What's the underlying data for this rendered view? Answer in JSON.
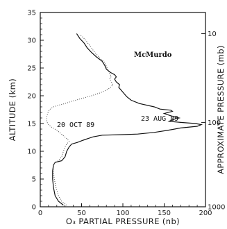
{
  "chart_data": {
    "type": "line",
    "xlabel": "O₃ PARTIAL PRESSURE (nb)",
    "ylabel": "ALTITUDE (km)",
    "y2label": "APPROXIMATE PRESSURE (mb)",
    "xlim": [
      0,
      200
    ],
    "ylim": [
      0,
      35
    ],
    "x_ticks": [
      "0",
      "50",
      "100",
      "150",
      "200"
    ],
    "y_ticks": [
      "0",
      "5",
      "10",
      "15",
      "20",
      "25",
      "30",
      "35"
    ],
    "y2_ticks": [
      {
        "label": "10",
        "altitude": 31.2
      },
      {
        "label": "100",
        "altitude": 15.2
      },
      {
        "label": "1000",
        "altitude": 0
      }
    ],
    "annotation": "McMurdo",
    "series": [
      {
        "name": "23 AUG 89",
        "style": "solid",
        "points": [
          [
            28,
            0.3
          ],
          [
            22,
            1.0
          ],
          [
            18,
            2.0
          ],
          [
            16,
            3.5
          ],
          [
            15,
            5
          ],
          [
            15,
            6.5
          ],
          [
            16,
            7.5
          ],
          [
            18,
            8.0
          ],
          [
            26,
            8.3
          ],
          [
            30,
            9
          ],
          [
            32,
            10
          ],
          [
            35,
            10.8
          ],
          [
            38,
            11.3
          ],
          [
            45,
            11.6
          ],
          [
            52,
            12
          ],
          [
            58,
            12.3
          ],
          [
            64,
            12.6
          ],
          [
            75,
            12.9
          ],
          [
            100,
            13.0
          ],
          [
            118,
            13.1
          ],
          [
            138,
            13.4
          ],
          [
            155,
            13.8
          ],
          [
            170,
            14.2
          ],
          [
            190,
            14.5
          ],
          [
            195,
            14.8
          ],
          [
            188,
            15.0
          ],
          [
            170,
            15.2
          ],
          [
            156,
            15.4
          ],
          [
            160,
            15.7
          ],
          [
            168,
            16.0
          ],
          [
            158,
            16.4
          ],
          [
            150,
            16.8
          ],
          [
            160,
            17.2
          ],
          [
            158,
            17.4
          ],
          [
            145,
            17.6
          ],
          [
            138,
            18.0
          ],
          [
            120,
            18.6
          ],
          [
            110,
            19.2
          ],
          [
            105,
            19.8
          ],
          [
            102,
            20.3
          ],
          [
            98,
            21.0
          ],
          [
            95,
            21.5
          ],
          [
            96,
            22.0
          ],
          [
            92,
            22.5
          ],
          [
            90,
            23.0
          ],
          [
            92,
            23.4
          ],
          [
            90,
            23.8
          ],
          [
            85,
            24.2
          ],
          [
            80,
            24.8
          ],
          [
            78,
            25.5
          ],
          [
            75,
            26.2
          ],
          [
            68,
            27.0
          ],
          [
            62,
            27.8
          ],
          [
            57,
            28.6
          ],
          [
            53,
            29.5
          ],
          [
            48,
            30.3
          ],
          [
            44,
            31.2
          ]
        ]
      },
      {
        "name": "20 OCT 89",
        "style": "dotted",
        "points": [
          [
            32,
            0.3
          ],
          [
            26,
            1.0
          ],
          [
            22,
            2.0
          ],
          [
            19,
            3.5
          ],
          [
            17,
            5
          ],
          [
            16,
            6.5
          ],
          [
            16,
            7.5
          ],
          [
            18,
            8.0
          ],
          [
            22,
            8.3
          ],
          [
            26,
            9.0
          ],
          [
            28,
            10.0
          ],
          [
            30,
            10.8
          ],
          [
            32,
            11.3
          ],
          [
            35,
            11.8
          ],
          [
            32,
            12.3
          ],
          [
            28,
            12.8
          ],
          [
            24,
            13.3
          ],
          [
            20,
            13.8
          ],
          [
            14,
            14.3
          ],
          [
            10,
            14.8
          ],
          [
            8,
            15.3
          ],
          [
            8,
            15.8
          ],
          [
            8,
            16.3
          ],
          [
            9,
            16.8
          ],
          [
            10,
            17.2
          ],
          [
            12,
            17.6
          ],
          [
            16,
            18.0
          ],
          [
            22,
            18.3
          ],
          [
            30,
            18.6
          ],
          [
            38,
            19.0
          ],
          [
            50,
            19.5
          ],
          [
            62,
            20.0
          ],
          [
            72,
            20.5
          ],
          [
            80,
            21.0
          ],
          [
            85,
            21.5
          ],
          [
            88,
            22.0
          ],
          [
            86,
            22.5
          ],
          [
            84,
            23.0
          ],
          [
            86,
            23.5
          ],
          [
            84,
            24.0
          ],
          [
            82,
            24.6
          ],
          [
            80,
            25.3
          ],
          [
            78,
            26.0
          ],
          [
            72,
            26.8
          ],
          [
            68,
            27.5
          ],
          [
            64,
            28.2
          ],
          [
            60,
            29.0
          ],
          [
            56,
            29.8
          ],
          [
            52,
            30.5
          ],
          [
            48,
            31.0
          ]
        ]
      }
    ]
  }
}
